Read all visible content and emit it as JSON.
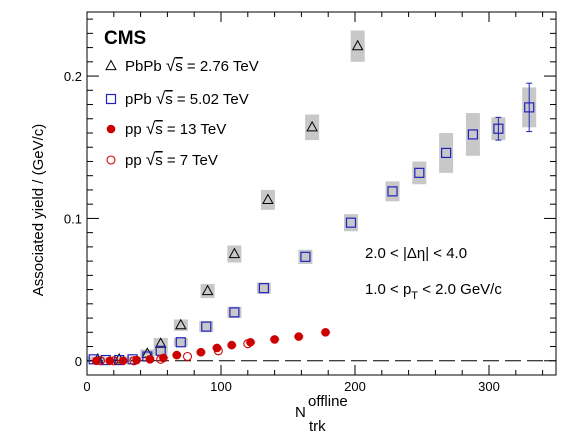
{
  "chart_data": {
    "type": "scatter",
    "experiment_label": "CMS",
    "xlabel_main": "N",
    "xlabel_sup": "offline",
    "xlabel_sub": "trk",
    "ylabel": "Associated yield / (GeV/c)",
    "xlim": [
      0,
      350
    ],
    "ylim": [
      -0.01,
      0.245
    ],
    "x_ticks": [
      0,
      100,
      200,
      300
    ],
    "y_ticks": [
      0,
      0.1,
      0.2
    ],
    "x_tick_labels": [
      "0",
      "100",
      "200",
      "300"
    ],
    "y_tick_labels": [
      "0",
      "0.1",
      "0.2"
    ],
    "annotations": {
      "deta": "2.0 < |Δη| < 4.0",
      "pt_pre": "1.0 < p",
      "pt_sub": "T",
      "pt_post": " < 2.0 GeV/c"
    },
    "series": [
      {
        "name": "PbPb √s = 2.76 TeV",
        "legend_prefix": "PbPb ",
        "legend_sqrt": "s",
        "legend_suffix": " = 2.76 TeV",
        "marker": "open-triangle",
        "color": "#000000",
        "x": [
          8,
          24,
          45,
          55,
          70,
          90,
          110,
          135,
          168,
          202
        ],
        "y": [
          0.001,
          0.001,
          0.005,
          0.012,
          0.025,
          0.049,
          0.075,
          0.113,
          0.164,
          0.221
        ],
        "syst": [
          0.002,
          0.002,
          0.003,
          0.004,
          0.004,
          0.005,
          0.006,
          0.007,
          0.009,
          0.011
        ]
      },
      {
        "name": "pPb √s = 5.02 TeV",
        "legend_prefix": "pPb   ",
        "legend_sqrt": "s",
        "legend_suffix": " = 5.02 TeV",
        "marker": "open-square",
        "color": "#2222bb",
        "x": [
          5,
          14,
          24,
          34,
          45,
          55,
          70,
          89,
          110,
          132,
          163,
          197,
          228,
          248,
          268,
          288,
          307,
          330
        ],
        "y": [
          0.001,
          0.0005,
          0.0005,
          0.001,
          0.003,
          0.007,
          0.013,
          0.024,
          0.034,
          0.051,
          0.073,
          0.097,
          0.119,
          0.132,
          0.146,
          0.159,
          0.163,
          0.178
        ],
        "syst": [
          0.002,
          0.002,
          0.002,
          0.002,
          0.002,
          0.003,
          0.003,
          0.004,
          0.004,
          0.004,
          0.005,
          0.006,
          0.007,
          0.008,
          0.014,
          0.015,
          0.008,
          0.014
        ],
        "stat": [
          0,
          0,
          0,
          0,
          0,
          0,
          0,
          0,
          0,
          0,
          0,
          0,
          0,
          0,
          0,
          0,
          0.008,
          0.017
        ]
      },
      {
        "name": "pp √s = 13 TeV",
        "legend_prefix": "pp ",
        "legend_sqrt": "s",
        "legend_suffix": " = 13 TeV",
        "marker": "filled-circle",
        "color": "#cc0000",
        "x": [
          7,
          17,
          27,
          37,
          47,
          57,
          67,
          85,
          97,
          108,
          122,
          140,
          158,
          178
        ],
        "y": [
          0.0,
          0.0,
          0.0,
          0.0005,
          0.001,
          0.002,
          0.004,
          0.006,
          0.009,
          0.011,
          0.013,
          0.015,
          0.017,
          0.02
        ],
        "syst": [
          0.0008,
          0.0008,
          0.0008,
          0.0008,
          0.0008,
          0.0008,
          0.001,
          0.001,
          0.001,
          0.001,
          0.001,
          0.001,
          0.001,
          0.001
        ]
      },
      {
        "name": "pp √s = 7 TeV",
        "legend_prefix": "pp ",
        "legend_sqrt": "s",
        "legend_suffix": " = 7 TeV",
        "marker": "open-circle",
        "color": "#cc0000",
        "x": [
          10,
          20,
          35,
          55,
          75,
          98,
          120
        ],
        "y": [
          0.0,
          0.0,
          0.0,
          0.001,
          0.003,
          0.007,
          0.012
        ],
        "syst": [
          0.0,
          0.0,
          0.0,
          0.0,
          0.0,
          0.0,
          0.0
        ]
      }
    ]
  }
}
